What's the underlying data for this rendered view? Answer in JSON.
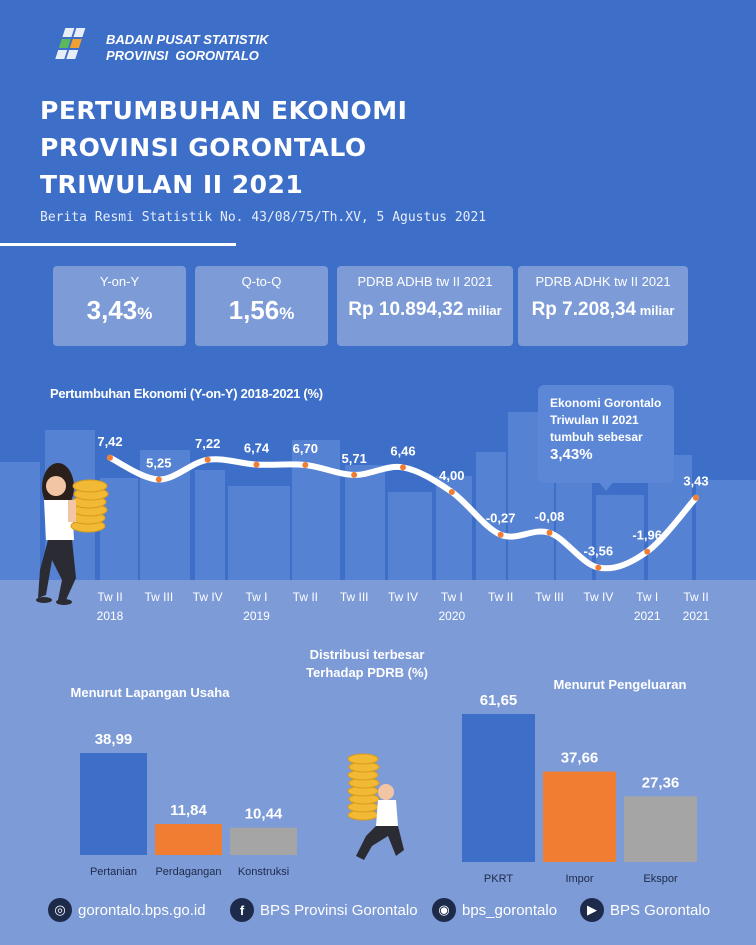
{
  "header": {
    "org_line1": "BADAN PUSAT STATISTIK",
    "org_line2": "PROVINSI  GORONTALO",
    "title_line1": "PERTUMBUHAN EKONOMI",
    "title_line2": "PROVINSI GORONTALO",
    "title_line3": "TRIWULAN II 2021",
    "subtitle": "Berita Resmi Statistik No. 43/08/75/Th.XV, 5 Agustus 2021"
  },
  "cards": [
    {
      "label": "Y-on-Y",
      "value": "3,43",
      "unit": "%"
    },
    {
      "label": "Q-to-Q",
      "value": "1,56",
      "unit": "%"
    },
    {
      "label": "PDRB ADHB tw II 2021",
      "value": "Rp 10.894,32",
      "unit": " miliar"
    },
    {
      "label": "PDRB ADHK tw II 2021",
      "value": "Rp 7.208,34",
      "unit": " miliar"
    }
  ],
  "callout": {
    "line1": "Ekonomi Gorontalo",
    "line2": "Triwulan II 2021",
    "line3": "tumbuh sebesar",
    "value": "3,43%"
  },
  "chart_data": [
    {
      "type": "line",
      "title": "Pertumbuhan Ekonomi (Y-on-Y) 2018-2021 (%)",
      "categories": [
        {
          "q": "Tw II",
          "year": "2018"
        },
        {
          "q": "Tw III",
          "year": ""
        },
        {
          "q": "Tw IV",
          "year": ""
        },
        {
          "q": "Tw I",
          "year": "2019"
        },
        {
          "q": "Tw II",
          "year": ""
        },
        {
          "q": "Tw III",
          "year": ""
        },
        {
          "q": "Tw IV",
          "year": ""
        },
        {
          "q": "Tw I",
          "year": "2020"
        },
        {
          "q": "Tw II",
          "year": ""
        },
        {
          "q": "Tw III",
          "year": ""
        },
        {
          "q": "Tw IV",
          "year": ""
        },
        {
          "q": "Tw I",
          "year": "2021"
        },
        {
          "q": "Tw II",
          "year": "2021"
        }
      ],
      "values": [
        7.42,
        5.25,
        7.22,
        6.74,
        6.7,
        5.71,
        6.46,
        4.0,
        -0.27,
        -0.08,
        -3.56,
        -1.96,
        3.43
      ],
      "labels": [
        "7,42",
        "5,25",
        "7,22",
        "6,74",
        "6,70",
        "5,71",
        "6,46",
        "4,00",
        "-0,27",
        "-0,08",
        "-3,56",
        "-1,96",
        "3,43"
      ],
      "ylim": [
        -4,
        8
      ]
    },
    {
      "type": "bar",
      "title": "Menurut Lapangan Usaha",
      "categories": [
        "Pertanian",
        "Perdagangan",
        "Konstruksi"
      ],
      "values": [
        38.99,
        11.84,
        10.44
      ],
      "labels": [
        "38,99",
        "11,84",
        "10,44"
      ],
      "colors": [
        "#3e6fc8",
        "#f07d32",
        "#a5a5a5"
      ]
    },
    {
      "type": "bar",
      "title": "Menurut Pengeluaran",
      "categories": [
        "PKRT",
        "Impor",
        "Ekspor"
      ],
      "values": [
        61.65,
        37.66,
        27.36
      ],
      "labels": [
        "61,65",
        "37,66",
        "27,36"
      ],
      "colors": [
        "#3e6fc8",
        "#f07d32",
        "#a5a5a5"
      ]
    }
  ],
  "distribution": {
    "line1": "Distribusi terbesar",
    "line2": "Terhadap PDRB (%)"
  },
  "footer": [
    {
      "icon": "globe-icon",
      "text": "gorontalo.bps.go.id"
    },
    {
      "icon": "facebook-icon",
      "text": "BPS Provinsi Gorontalo"
    },
    {
      "icon": "instagram-icon",
      "text": "bps_gorontalo"
    },
    {
      "icon": "youtube-icon",
      "text": "BPS Gorontalo"
    }
  ]
}
